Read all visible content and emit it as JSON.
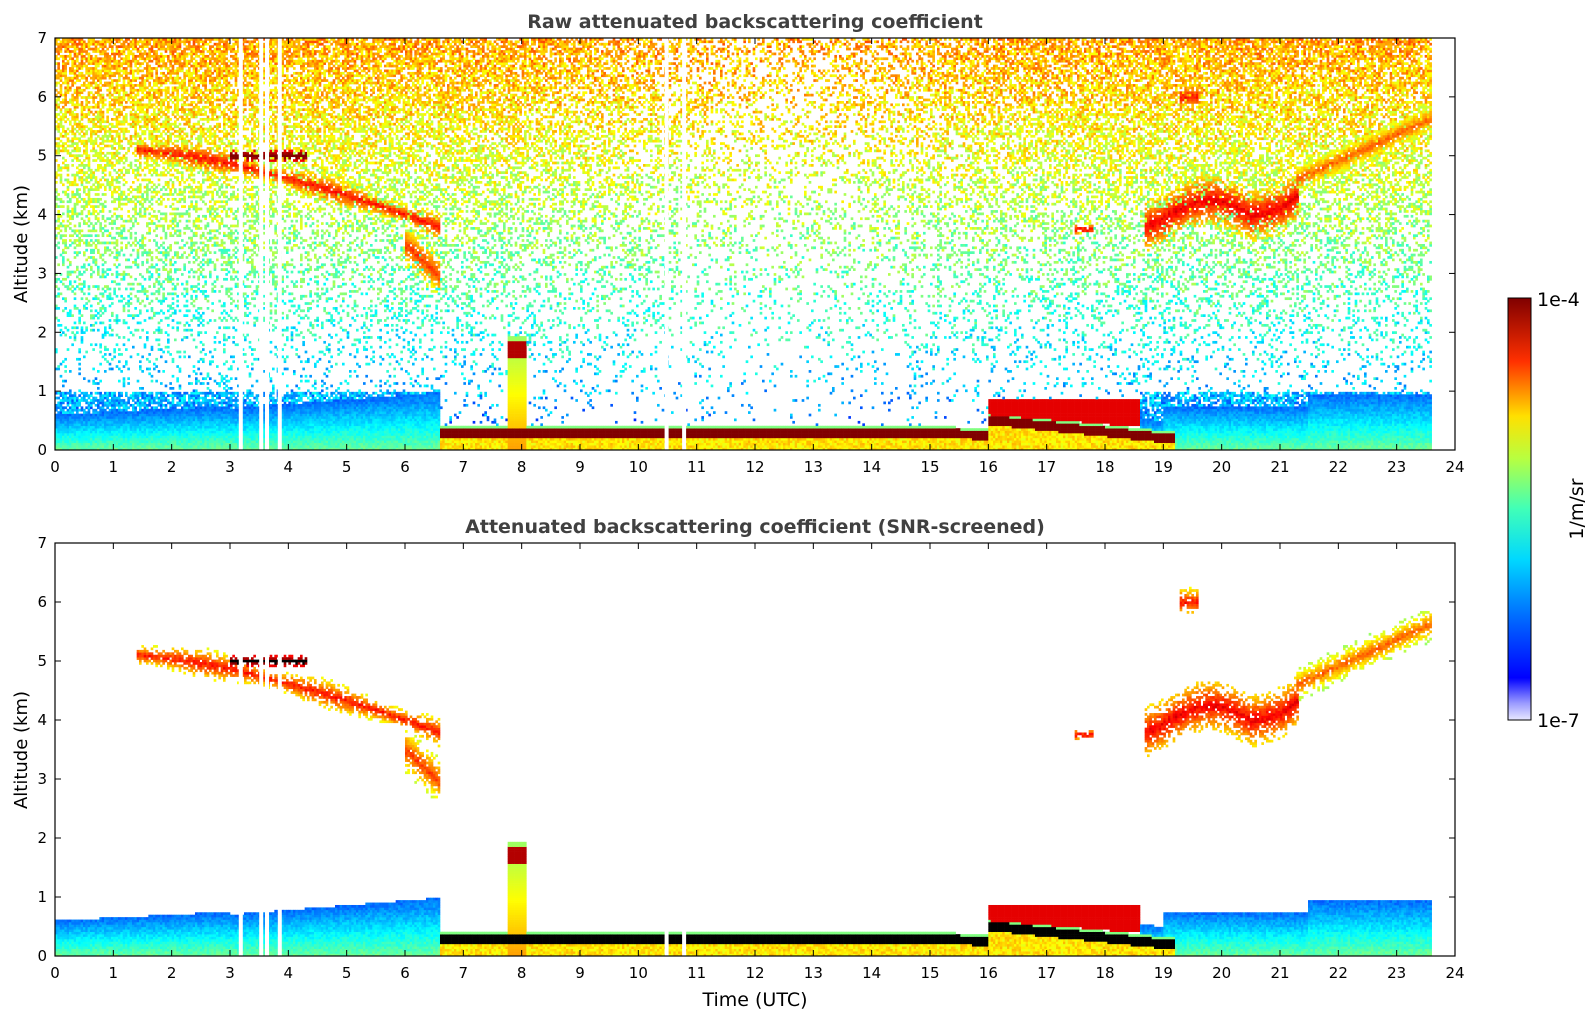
{
  "chart_data": [
    {
      "type": "heatmap",
      "title": "Raw attenuated backscattering coefficient",
      "xlabel": "",
      "ylabel": "Altitude (km)",
      "xlim": [
        0,
        24
      ],
      "ylim": [
        0,
        7
      ],
      "xticks": [
        "0",
        "1",
        "2",
        "3",
        "4",
        "5",
        "6",
        "7",
        "8",
        "9",
        "10",
        "11",
        "12",
        "13",
        "14",
        "15",
        "16",
        "17",
        "18",
        "19",
        "20",
        "21",
        "22",
        "23",
        "24"
      ],
      "yticks": [
        "0",
        "1",
        "2",
        "3",
        "4",
        "5",
        "6",
        "7"
      ],
      "data_end_hour": 23.6,
      "screened": false
    },
    {
      "type": "heatmap",
      "title": "Attenuated backscattering coefficient (SNR-screened)",
      "xlabel": "Time (UTC)",
      "ylabel": "Altitude (km)",
      "xlim": [
        0,
        24
      ],
      "ylim": [
        0,
        7
      ],
      "xticks": [
        "0",
        "1",
        "2",
        "3",
        "4",
        "5",
        "6",
        "7",
        "8",
        "9",
        "10",
        "11",
        "12",
        "13",
        "14",
        "15",
        "16",
        "17",
        "18",
        "19",
        "20",
        "21",
        "22",
        "23",
        "24"
      ],
      "yticks": [
        "0",
        "1",
        "2",
        "3",
        "4",
        "5",
        "6",
        "7"
      ],
      "data_end_hour": 23.6,
      "screened": true
    }
  ],
  "colorbar": {
    "label": "1/m/sr",
    "max_label": "1e-4",
    "min_label": "1e-7",
    "scale": "log",
    "range": [
      1e-07,
      0.0001
    ],
    "colormap": "jet"
  },
  "colors": {
    "title_text": "#404040",
    "cloud_dark": "#8b0000",
    "screened_core": "#000000"
  }
}
